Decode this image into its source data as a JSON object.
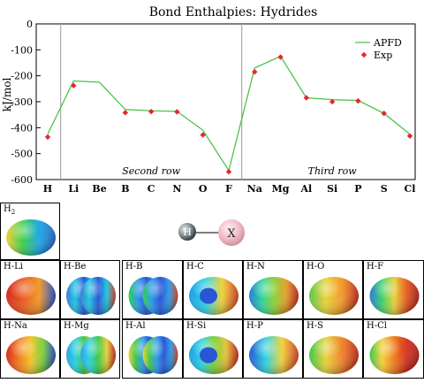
{
  "chart_data": {
    "type": "line",
    "title": "Bond Enthalpies: Hydrides",
    "ylabel": "kJ/mol",
    "xlabel": "",
    "ylim": [
      -600,
      0
    ],
    "yticks": [
      0,
      -100,
      -200,
      -300,
      -400,
      -500,
      -600
    ],
    "categories": [
      "H",
      "Li",
      "Be",
      "B",
      "C",
      "N",
      "O",
      "F",
      "Na",
      "Mg",
      "Al",
      "Si",
      "P",
      "S",
      "Cl"
    ],
    "series": [
      {
        "name": "APFD",
        "color": "#4cc24c",
        "style": "line",
        "values": [
          -425,
          -220,
          -225,
          -330,
          -335,
          -337,
          -410,
          -565,
          -170,
          -125,
          -285,
          -292,
          -295,
          -345,
          -425
        ]
      },
      {
        "name": "Exp",
        "color": "#e8262b",
        "style": "marker",
        "values": [
          -436,
          -238,
          null,
          -342,
          -338,
          -339,
          -428,
          -570,
          -185,
          -128,
          -285,
          -300,
          -297,
          -345,
          -432
        ]
      }
    ],
    "legend": {
      "position": "top-right",
      "entries": [
        "APFD",
        "Exp"
      ]
    },
    "row_labels": [
      {
        "text": "Second row",
        "from": "Li",
        "to": "F"
      },
      {
        "text": "Third row",
        "from": "Na",
        "to": "Cl"
      }
    ],
    "grid": false
  },
  "diagram": {
    "atom_left": "H",
    "atom_right": "X"
  },
  "tiles": [
    {
      "label": "H",
      "sub": "2",
      "kind": "h2"
    },
    {
      "label": "H-Li",
      "kind": "li"
    },
    {
      "label": "H-Be",
      "kind": "be"
    },
    {
      "label": "H-B",
      "kind": "b"
    },
    {
      "label": "H-C",
      "kind": "c"
    },
    {
      "label": "H-N",
      "kind": "n"
    },
    {
      "label": "H-O",
      "kind": "o"
    },
    {
      "label": "H-F",
      "kind": "f"
    },
    {
      "label": "H-Na",
      "kind": "na"
    },
    {
      "label": "H-Mg",
      "kind": "mg"
    },
    {
      "label": "H-Al",
      "kind": "al"
    },
    {
      "label": "H-Si",
      "kind": "si"
    },
    {
      "label": "H-P",
      "kind": "p"
    },
    {
      "label": "H-S",
      "kind": "s"
    },
    {
      "label": "H-Cl",
      "kind": "cl"
    }
  ]
}
